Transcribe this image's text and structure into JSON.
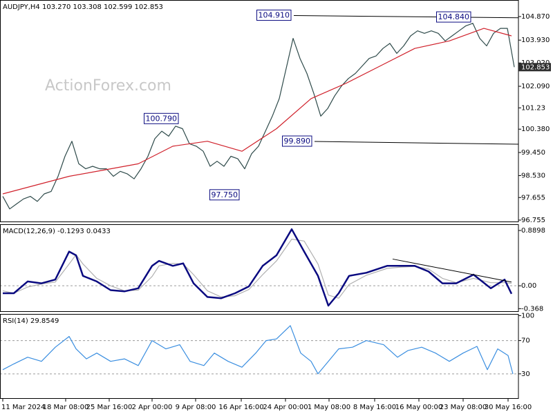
{
  "chart_data": [
    {
      "type": "line",
      "header": "AUDJPY,H4  103.270 103.308 102.599 102.853",
      "watermark": "ActionForex.com",
      "xlim": [
        0,
        746
      ],
      "ylim": [
        96.672,
        105.53
      ],
      "yticks": [
        {
          "value": 104.87,
          "label": "104.870"
        },
        {
          "value": 103.93,
          "label": "103.930"
        },
        {
          "value": 103.02,
          "label": "103.020"
        },
        {
          "value": 102.09,
          "label": "102.090"
        },
        101.23,
        {
          "value": 100.38,
          "label": "100.380"
        },
        {
          "value": 99.45,
          "label": "99.450"
        },
        {
          "value": 98.53,
          "label": "98.530"
        },
        97.655,
        96.755
      ],
      "series": [
        {
          "color": "#2e4a4a",
          "x": [
            0,
            10,
            20,
            30,
            40,
            50,
            60,
            70,
            80,
            90,
            100,
            110,
            120,
            130,
            140,
            150,
            160,
            170,
            180,
            190,
            200,
            210,
            220,
            230,
            240,
            250,
            260,
            270,
            280,
            290,
            300,
            310,
            320,
            330,
            340,
            350,
            360,
            370,
            380,
            390,
            400,
            410,
            420,
            430,
            440,
            450,
            460,
            470,
            480,
            490,
            500,
            510,
            520,
            530,
            540,
            550,
            560,
            570,
            580,
            590,
            600,
            610,
            620,
            630,
            640,
            650,
            660,
            670,
            680,
            690,
            700,
            710,
            720,
            730,
            740
          ],
          "values": [
            97.7,
            97.2,
            97.4,
            97.6,
            97.7,
            97.5,
            97.8,
            97.9,
            98.5,
            99.3,
            99.9,
            99.0,
            98.8,
            98.9,
            98.8,
            98.8,
            98.5,
            98.7,
            98.6,
            98.4,
            98.8,
            99.3,
            100.0,
            100.3,
            100.1,
            100.5,
            100.4,
            99.8,
            99.7,
            99.5,
            98.9,
            99.1,
            98.9,
            99.3,
            99.2,
            98.8,
            99.4,
            99.7,
            100.3,
            100.9,
            101.6,
            102.8,
            104.0,
            103.2,
            102.6,
            101.8,
            100.9,
            101.2,
            101.7,
            102.1,
            102.4,
            102.6,
            102.9,
            103.2,
            103.3,
            103.6,
            103.8,
            103.4,
            103.7,
            104.1,
            104.3,
            104.2,
            104.3,
            104.2,
            103.9,
            104.1,
            104.3,
            104.5,
            104.6,
            104.0,
            103.7,
            104.2,
            104.4,
            104.4,
            102.853
          ]
        },
        {
          "color": "#d0202a",
          "x": [
            0,
            96,
            146,
            196,
            246,
            296,
            346,
            396,
            446,
            496,
            546,
            596,
            646,
            696,
            736
          ],
          "values": [
            97.8,
            98.5,
            98.75,
            99.0,
            99.7,
            99.9,
            99.5,
            100.4,
            101.6,
            102.2,
            102.9,
            103.6,
            103.9,
            104.4,
            104.1
          ]
        }
      ],
      "annotations": [
        {
          "x": 421,
          "value": 104.91,
          "label": "104.910"
        },
        {
          "x": 681,
          "value": 104.84,
          "label": "104.840"
        },
        {
          "x": 258,
          "value": 100.79,
          "label": "100.790"
        },
        {
          "x": 346,
          "value": 97.75,
          "label": "97.750"
        },
        {
          "x": 451,
          "value": 99.89,
          "label": "99.890"
        }
      ],
      "trendlines": [
        {
          "x": [
            421,
            746
          ],
          "values": [
            104.91,
            104.82
          ]
        },
        {
          "x": [
            451,
            746
          ],
          "values": [
            99.89,
            99.78
          ]
        }
      ],
      "last_price": 102.853
    },
    {
      "type": "line",
      "header": "MACD(12,26,9) -0.1293 0.0433",
      "xlim": [
        0,
        746
      ],
      "ylim": [
        -0.42,
        0.99
      ],
      "yticks": [
        0.8898,
        {
          "value": 0,
          "label": "0.00"
        },
        -0.368
      ],
      "levels": [
        0
      ],
      "series": [
        {
          "color": "#b0b0b0",
          "x": [
            0,
            16,
            36,
            56,
            76,
            96,
            106,
            116,
            136,
            156,
            176,
            196,
            216,
            226,
            246,
            261,
            276,
            296,
            316,
            336,
            356,
            376,
            396,
            418,
            436,
            456,
            471,
            486,
            501,
            526,
            556,
            576,
            596,
            616,
            636,
            656,
            681,
            706,
            726,
            736
          ],
          "values": [
            -0.08,
            -0.12,
            -0.02,
            0.03,
            0.06,
            0.35,
            0.5,
            0.35,
            0.12,
            0.0,
            -0.08,
            -0.07,
            0.15,
            0.32,
            0.36,
            0.35,
            0.18,
            -0.08,
            -0.18,
            -0.16,
            -0.06,
            0.18,
            0.4,
            0.75,
            0.72,
            0.35,
            -0.15,
            -0.2,
            0.02,
            0.17,
            0.28,
            0.3,
            0.31,
            0.27,
            0.12,
            0.05,
            0.12,
            0.05,
            0.05,
            0.04
          ]
        },
        {
          "color": "#0a0a80",
          "x": [
            0,
            16,
            36,
            56,
            76,
            96,
            106,
            116,
            136,
            156,
            176,
            196,
            216,
            226,
            246,
            261,
            276,
            296,
            316,
            336,
            356,
            376,
            396,
            418,
            436,
            456,
            471,
            486,
            501,
            526,
            556,
            576,
            596,
            616,
            636,
            656,
            681,
            706,
            726,
            736
          ],
          "values": [
            -0.12,
            -0.12,
            0.07,
            0.04,
            0.1,
            0.55,
            0.49,
            0.16,
            0.07,
            -0.07,
            -0.09,
            -0.04,
            0.32,
            0.4,
            0.32,
            0.36,
            0.04,
            -0.18,
            -0.2,
            -0.12,
            -0.01,
            0.32,
            0.49,
            0.91,
            0.55,
            0.16,
            -0.32,
            -0.12,
            0.16,
            0.21,
            0.32,
            0.32,
            0.32,
            0.23,
            0.04,
            0.04,
            0.18,
            -0.04,
            0.1,
            -0.1293
          ]
        }
      ],
      "trendlines": [
        {
          "x": [
            564,
            736
          ],
          "values": [
            0.43,
            0.06
          ]
        }
      ]
    },
    {
      "type": "line",
      "header": "RSI(14) 29.8549",
      "xlim": [
        0,
        746
      ],
      "ylim": [
        0,
        102
      ],
      "yticks": [
        100,
        70,
        30
      ],
      "levels": [
        70,
        30
      ],
      "series": [
        {
          "color": "#3a8ee0",
          "x": [
            0,
            16,
            36,
            56,
            76,
            96,
            106,
            121,
            136,
            156,
            176,
            196,
            216,
            236,
            256,
            271,
            291,
            306,
            326,
            346,
            366,
            381,
            396,
            416,
            431,
            446,
            456,
            471,
            486,
            506,
            526,
            551,
            571,
            586,
            606,
            626,
            646,
            666,
            686,
            701,
            716,
            731,
            738
          ],
          "values": [
            35,
            42,
            50,
            45,
            62,
            75,
            60,
            48,
            55,
            45,
            48,
            40,
            70,
            60,
            65,
            45,
            40,
            55,
            45,
            38,
            55,
            70,
            72,
            88,
            55,
            45,
            30,
            45,
            60,
            62,
            70,
            65,
            50,
            58,
            62,
            55,
            45,
            55,
            63,
            35,
            60,
            52,
            29.85
          ]
        }
      ],
      "xticks": [
        {
          "value": 0,
          "label": "11 Mar 2024"
        },
        {
          "value": 91,
          "label": "18 Mar 08:00"
        },
        {
          "value": 154,
          "label": "25 Mar 16:00"
        },
        {
          "value": 216,
          "label": "2 Apr 00:00"
        },
        {
          "value": 279,
          "label": "9 Apr 08:00"
        },
        {
          "value": 345,
          "label": "16 Apr 16:00"
        },
        {
          "value": 409,
          "label": "24 Apr 00:00"
        },
        {
          "value": 472,
          "label": "1 May 08:00"
        },
        {
          "value": 538,
          "label": "8 May 16:00"
        },
        {
          "value": 602,
          "label": "16 May 00:00"
        },
        {
          "value": 666,
          "label": "23 May 08:00"
        },
        {
          "value": 731,
          "label": "30 May 16:00"
        }
      ]
    }
  ]
}
